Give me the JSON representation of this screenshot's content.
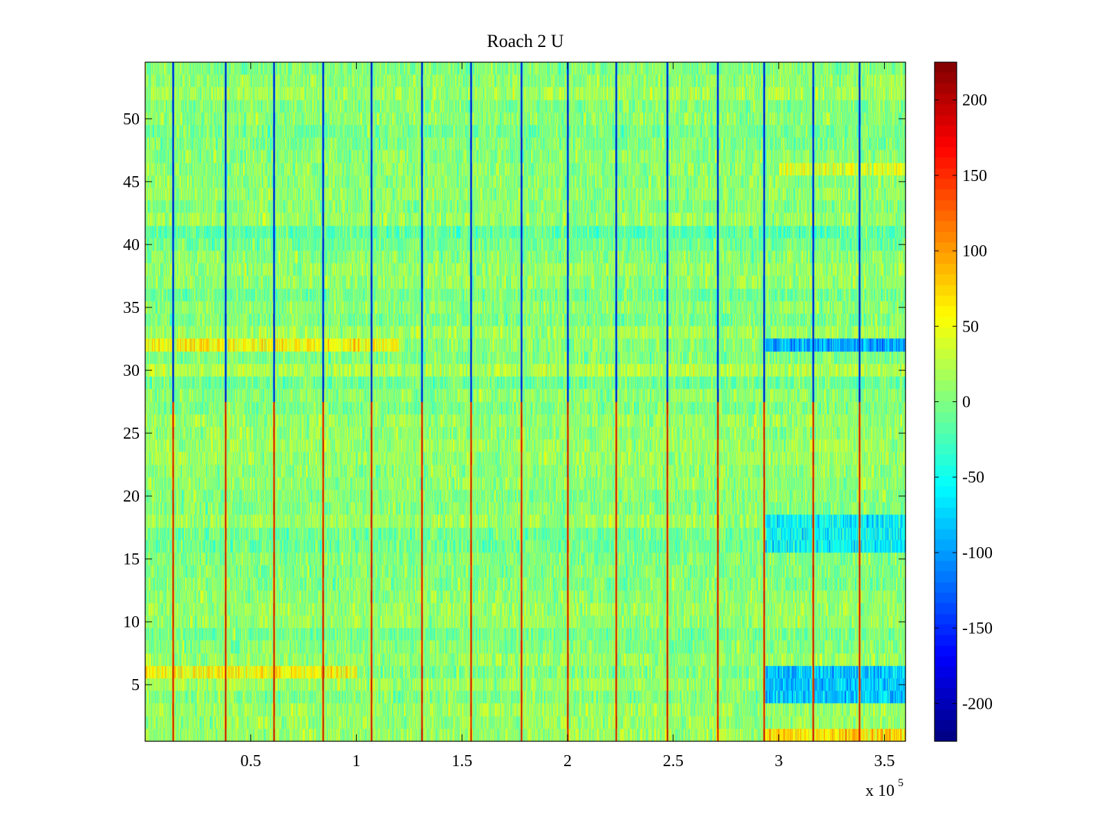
{
  "chart_data": {
    "type": "heatmap",
    "title": "Roach 2 U",
    "xlabel": "",
    "ylabel": "",
    "x_exponent_label": {
      "base": "x 10",
      "exponent": "5"
    },
    "xlim": [
      0,
      360000
    ],
    "ylim": [
      0.5,
      54.5
    ],
    "n_rows": 54,
    "xticks": [
      {
        "value": 50000,
        "label": "0.5"
      },
      {
        "value": 100000,
        "label": "1"
      },
      {
        "value": 150000,
        "label": "1.5"
      },
      {
        "value": 200000,
        "label": "2"
      },
      {
        "value": 250000,
        "label": "2.5"
      },
      {
        "value": 300000,
        "label": "3"
      },
      {
        "value": 350000,
        "label": "3.5"
      }
    ],
    "yticks": [
      {
        "value": 5,
        "label": "5"
      },
      {
        "value": 10,
        "label": "10"
      },
      {
        "value": 15,
        "label": "15"
      },
      {
        "value": 20,
        "label": "20"
      },
      {
        "value": 25,
        "label": "25"
      },
      {
        "value": 30,
        "label": "30"
      },
      {
        "value": 35,
        "label": "35"
      },
      {
        "value": 40,
        "label": "40"
      },
      {
        "value": 45,
        "label": "45"
      },
      {
        "value": 50,
        "label": "50"
      }
    ],
    "colorbar": {
      "colormap": "jet",
      "clim": [
        -225,
        225
      ],
      "ticks": [
        {
          "value": 200,
          "label": "200"
        },
        {
          "value": 150,
          "label": "150"
        },
        {
          "value": 100,
          "label": "100"
        },
        {
          "value": 50,
          "label": "50"
        },
        {
          "value": 0,
          "label": "0"
        },
        {
          "value": -50,
          "label": "-50"
        },
        {
          "value": -100,
          "label": "-100"
        },
        {
          "value": -150,
          "label": "-150"
        },
        {
          "value": -200,
          "label": "-200"
        }
      ]
    },
    "background_level": 5,
    "stimulus_events": {
      "x_values": [
        13000,
        38000,
        61000,
        84000,
        107000,
        131000,
        154000,
        178000,
        200000,
        223000,
        247000,
        271000,
        293000,
        316000,
        338000
      ],
      "rows_negative": [
        28,
        54
      ],
      "rows_positive": [
        1,
        27
      ],
      "negative_value": -215,
      "positive_value": 215
    },
    "regions": [
      {
        "x_range": [
          293000,
          360000
        ],
        "rows": [
          32,
          32
        ],
        "value": -95
      },
      {
        "x_range": [
          293000,
          360000
        ],
        "rows": [
          4,
          6
        ],
        "value": -80
      },
      {
        "x_range": [
          293000,
          360000
        ],
        "rows": [
          16,
          18
        ],
        "value": -55
      },
      {
        "x_range": [
          293000,
          360000
        ],
        "rows": [
          1,
          1
        ],
        "value": 70
      },
      {
        "x_range": [
          0,
          120000
        ],
        "rows": [
          32,
          32
        ],
        "value": 55
      },
      {
        "x_range": [
          0,
          100000
        ],
        "rows": [
          6,
          6
        ],
        "value": 55
      },
      {
        "x_range": [
          300000,
          360000
        ],
        "rows": [
          46,
          46
        ],
        "value": 40
      }
    ]
  }
}
